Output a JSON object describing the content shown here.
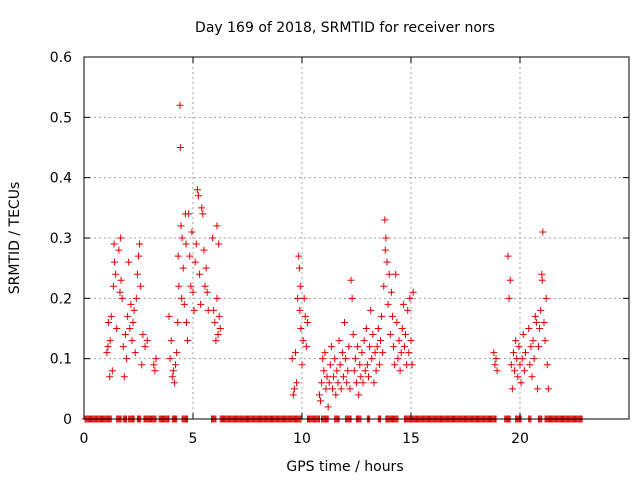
{
  "chart_data": {
    "type": "scatter",
    "title": "Day 169 of 2018, SRMTID for receiver nors",
    "xlabel": "GPS time / hours",
    "ylabel": "SRMTID / TECUs",
    "xlim": [
      0,
      25
    ],
    "ylim": [
      0,
      0.6
    ],
    "xticks": [
      0,
      5,
      10,
      15,
      20
    ],
    "yticks": [
      0,
      0.1,
      0.2,
      0.3,
      0.4,
      0.5,
      0.6
    ],
    "xtick_labels": [
      "0",
      "5",
      "10",
      "15",
      "20"
    ],
    "ytick_labels": [
      "0",
      "0.1",
      "0.2",
      "0.3",
      "0.4",
      "0.5",
      "0.6"
    ],
    "grid": true,
    "marker": "plus",
    "color": "#e00000",
    "series": [
      {
        "name": "SRMTID",
        "points": [
          [
            1.05,
            0.11
          ],
          [
            1.1,
            0.12
          ],
          [
            1.12,
            0.16
          ],
          [
            1.18,
            0.07
          ],
          [
            1.2,
            0.13
          ],
          [
            1.25,
            0.17
          ],
          [
            1.3,
            0.08
          ],
          [
            1.35,
            0.22
          ],
          [
            1.38,
            0.29
          ],
          [
            1.4,
            0.26
          ],
          [
            1.45,
            0.24
          ],
          [
            1.5,
            0.15
          ],
          [
            1.6,
            0.28
          ],
          [
            1.65,
            0.21
          ],
          [
            1.68,
            0.3
          ],
          [
            1.7,
            0.23
          ],
          [
            1.75,
            0.2
          ],
          [
            1.8,
            0.12
          ],
          [
            1.85,
            0.07
          ],
          [
            1.9,
            0.14
          ],
          [
            1.95,
            0.1
          ],
          [
            2.0,
            0.17
          ],
          [
            2.05,
            0.26
          ],
          [
            2.1,
            0.15
          ],
          [
            2.15,
            0.19
          ],
          [
            2.2,
            0.13
          ],
          [
            2.25,
            0.16
          ],
          [
            2.3,
            0.18
          ],
          [
            2.35,
            0.11
          ],
          [
            2.4,
            0.2
          ],
          [
            2.45,
            0.24
          ],
          [
            2.5,
            0.27
          ],
          [
            2.55,
            0.29
          ],
          [
            2.6,
            0.22
          ],
          [
            2.65,
            0.09
          ],
          [
            2.7,
            0.14
          ],
          [
            2.8,
            0.12
          ],
          [
            2.9,
            0.13
          ],
          [
            3.2,
            0.09
          ],
          [
            3.25,
            0.08
          ],
          [
            3.3,
            0.1
          ],
          [
            3.9,
            0.17
          ],
          [
            3.95,
            0.1
          ],
          [
            4.0,
            0.13
          ],
          [
            4.05,
            0.07
          ],
          [
            4.1,
            0.08
          ],
          [
            4.15,
            0.06
          ],
          [
            4.2,
            0.09
          ],
          [
            4.25,
            0.11
          ],
          [
            4.3,
            0.16
          ],
          [
            4.32,
            0.27
          ],
          [
            4.35,
            0.22
          ],
          [
            4.4,
            0.52
          ],
          [
            4.42,
            0.45
          ],
          [
            4.45,
            0.32
          ],
          [
            4.48,
            0.2
          ],
          [
            4.5,
            0.3
          ],
          [
            4.55,
            0.25
          ],
          [
            4.6,
            0.19
          ],
          [
            4.65,
            0.34
          ],
          [
            4.68,
            0.29
          ],
          [
            4.7,
            0.16
          ],
          [
            4.75,
            0.13
          ],
          [
            4.8,
            0.34
          ],
          [
            4.85,
            0.27
          ],
          [
            4.9,
            0.22
          ],
          [
            4.95,
            0.31
          ],
          [
            5.0,
            0.21
          ],
          [
            5.05,
            0.18
          ],
          [
            5.1,
            0.26
          ],
          [
            5.15,
            0.29
          ],
          [
            5.2,
            0.38
          ],
          [
            5.25,
            0.37
          ],
          [
            5.3,
            0.24
          ],
          [
            5.35,
            0.19
          ],
          [
            5.4,
            0.35
          ],
          [
            5.45,
            0.34
          ],
          [
            5.5,
            0.28
          ],
          [
            5.55,
            0.22
          ],
          [
            5.6,
            0.25
          ],
          [
            5.65,
            0.21
          ],
          [
            5.7,
            0.18
          ],
          [
            5.9,
            0.3
          ],
          [
            5.95,
            0.18
          ],
          [
            6.0,
            0.16
          ],
          [
            6.05,
            0.13
          ],
          [
            6.1,
            0.2
          ],
          [
            6.15,
            0.14
          ],
          [
            6.2,
            0.17
          ],
          [
            6.25,
            0.15
          ],
          [
            6.1,
            0.32
          ],
          [
            6.18,
            0.29
          ],
          [
            9.55,
            0.1
          ],
          [
            9.6,
            0.04
          ],
          [
            9.65,
            0.05
          ],
          [
            9.7,
            0.11
          ],
          [
            9.75,
            0.06
          ],
          [
            9.8,
            0.2
          ],
          [
            9.85,
            0.27
          ],
          [
            9.88,
            0.25
          ],
          [
            9.9,
            0.18
          ],
          [
            9.92,
            0.22
          ],
          [
            9.95,
            0.15
          ],
          [
            10.0,
            0.09
          ],
          [
            10.05,
            0.13
          ],
          [
            10.1,
            0.2
          ],
          [
            10.15,
            0.17
          ],
          [
            10.2,
            0.12
          ],
          [
            10.25,
            0.16
          ],
          [
            10.8,
            0.04
          ],
          [
            10.85,
            0.03
          ],
          [
            10.9,
            0.06
          ],
          [
            10.95,
            0.1
          ],
          [
            11.0,
            0.08
          ],
          [
            11.05,
            0.11
          ],
          [
            11.1,
            0.05
          ],
          [
            11.15,
            0.07
          ],
          [
            11.2,
            0.02
          ],
          [
            11.25,
            0.06
          ],
          [
            11.3,
            0.09
          ],
          [
            11.35,
            0.12
          ],
          [
            11.4,
            0.05
          ],
          [
            11.45,
            0.07
          ],
          [
            11.5,
            0.1
          ],
          [
            11.55,
            0.04
          ],
          [
            11.6,
            0.08
          ],
          [
            11.65,
            0.06
          ],
          [
            11.7,
            0.13
          ],
          [
            11.75,
            0.09
          ],
          [
            11.8,
            0.05
          ],
          [
            11.85,
            0.11
          ],
          [
            11.9,
            0.07
          ],
          [
            11.95,
            0.16
          ],
          [
            12.0,
            0.1
          ],
          [
            12.05,
            0.06
          ],
          [
            12.1,
            0.08
          ],
          [
            12.15,
            0.12
          ],
          [
            12.2,
            0.05
          ],
          [
            12.25,
            0.23
          ],
          [
            12.3,
            0.2
          ],
          [
            12.35,
            0.14
          ],
          [
            12.4,
            0.08
          ],
          [
            12.45,
            0.1
          ],
          [
            12.5,
            0.06
          ],
          [
            12.55,
            0.12
          ],
          [
            12.6,
            0.04
          ],
          [
            12.65,
            0.09
          ],
          [
            12.7,
            0.07
          ],
          [
            12.75,
            0.11
          ],
          [
            12.8,
            0.06
          ],
          [
            12.85,
            0.13
          ],
          [
            12.9,
            0.08
          ],
          [
            12.95,
            0.15
          ],
          [
            13.0,
            0.09
          ],
          [
            13.05,
            0.07
          ],
          [
            13.1,
            0.12
          ],
          [
            13.15,
            0.18
          ],
          [
            13.2,
            0.1
          ],
          [
            13.25,
            0.14
          ],
          [
            13.3,
            0.06
          ],
          [
            13.35,
            0.11
          ],
          [
            13.4,
            0.08
          ],
          [
            13.45,
            0.12
          ],
          [
            13.5,
            0.15
          ],
          [
            13.55,
            0.09
          ],
          [
            13.6,
            0.13
          ],
          [
            13.65,
            0.17
          ],
          [
            13.7,
            0.11
          ],
          [
            13.75,
            0.22
          ],
          [
            13.8,
            0.33
          ],
          [
            13.82,
            0.28
          ],
          [
            13.85,
            0.3
          ],
          [
            13.9,
            0.26
          ],
          [
            13.95,
            0.19
          ],
          [
            14.0,
            0.24
          ],
          [
            14.05,
            0.14
          ],
          [
            14.1,
            0.21
          ],
          [
            14.15,
            0.17
          ],
          [
            14.2,
            0.12
          ],
          [
            14.25,
            0.09
          ],
          [
            14.3,
            0.24
          ],
          [
            14.35,
            0.16
          ],
          [
            14.4,
            0.1
          ],
          [
            14.45,
            0.13
          ],
          [
            14.5,
            0.08
          ],
          [
            14.55,
            0.11
          ],
          [
            14.6,
            0.15
          ],
          [
            14.65,
            0.19
          ],
          [
            14.7,
            0.12
          ],
          [
            14.75,
            0.14
          ],
          [
            14.8,
            0.09
          ],
          [
            14.85,
            0.18
          ],
          [
            14.9,
            0.11
          ],
          [
            14.95,
            0.2
          ],
          [
            15.0,
            0.13
          ],
          [
            15.05,
            0.09
          ],
          [
            15.1,
            0.21
          ],
          [
            18.8,
            0.11
          ],
          [
            18.85,
            0.09
          ],
          [
            18.9,
            0.1
          ],
          [
            18.95,
            0.08
          ],
          [
            19.45,
            0.27
          ],
          [
            19.5,
            0.2
          ],
          [
            19.55,
            0.23
          ],
          [
            19.6,
            0.09
          ],
          [
            19.65,
            0.05
          ],
          [
            19.7,
            0.11
          ],
          [
            19.75,
            0.08
          ],
          [
            19.8,
            0.13
          ],
          [
            19.85,
            0.1
          ],
          [
            19.9,
            0.07
          ],
          [
            19.95,
            0.12
          ],
          [
            20.0,
            0.09
          ],
          [
            20.05,
            0.06
          ],
          [
            20.1,
            0.1
          ],
          [
            20.15,
            0.14
          ],
          [
            20.2,
            0.08
          ],
          [
            20.25,
            0.11
          ],
          [
            20.4,
            0.15
          ],
          [
            20.45,
            0.09
          ],
          [
            20.5,
            0.12
          ],
          [
            20.55,
            0.07
          ],
          [
            20.6,
            0.13
          ],
          [
            20.65,
            0.1
          ],
          [
            20.7,
            0.17
          ],
          [
            20.75,
            0.16
          ],
          [
            20.8,
            0.05
          ],
          [
            20.85,
            0.12
          ],
          [
            20.9,
            0.15
          ],
          [
            20.95,
            0.18
          ],
          [
            21.0,
            0.24
          ],
          [
            21.02,
            0.23
          ],
          [
            21.05,
            0.31
          ],
          [
            21.1,
            0.16
          ],
          [
            21.15,
            0.13
          ],
          [
            21.2,
            0.2
          ],
          [
            21.25,
            0.09
          ],
          [
            21.3,
            0.05
          ]
        ],
        "zero_runs": [
          [
            0.05,
            1.25
          ],
          [
            1.5,
            1.7
          ],
          [
            1.8,
            1.95
          ],
          [
            2.05,
            2.3
          ],
          [
            2.45,
            2.6
          ],
          [
            2.75,
            3.3
          ],
          [
            3.45,
            3.9
          ],
          [
            4.05,
            4.25
          ],
          [
            4.5,
            4.75
          ],
          [
            5.85,
            6.05
          ],
          [
            6.25,
            9.95
          ],
          [
            10.25,
            10.8
          ],
          [
            10.9,
            11.2
          ],
          [
            11.5,
            11.7
          ],
          [
            12.0,
            12.25
          ],
          [
            12.5,
            12.7
          ],
          [
            13.0,
            13.1
          ],
          [
            13.5,
            13.6
          ],
          [
            13.85,
            14.4
          ],
          [
            14.7,
            18.9
          ],
          [
            19.3,
            19.55
          ],
          [
            19.8,
            20.05
          ],
          [
            20.4,
            20.5
          ],
          [
            20.85,
            21.0
          ],
          [
            21.15,
            22.85
          ]
        ]
      }
    ]
  }
}
